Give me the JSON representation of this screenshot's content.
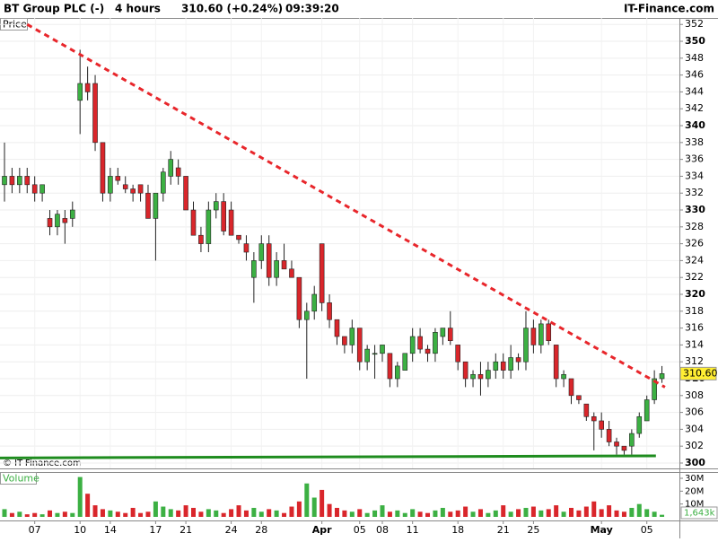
{
  "chart_data": {
    "type": "candlestick",
    "title": "BT Group PLC (-)",
    "interval": "4 hours",
    "change": "310.60 (+0.24%)",
    "time": "09:39:20",
    "source": "IT-Finance.com",
    "price_label": "Price",
    "copyright": "© IT-Finance.com",
    "up_color": "#3cb043",
    "down_color": "#d9262b",
    "categories": [
      null,
      null,
      null,
      null,
      "07",
      null,
      null,
      null,
      null,
      null,
      "10",
      null,
      null,
      null,
      "14",
      null,
      null,
      null,
      null,
      null,
      "17",
      null,
      null,
      null,
      "21",
      null,
      null,
      null,
      null,
      null,
      "24",
      null,
      null,
      null,
      "28",
      null,
      null,
      null,
      null,
      null,
      null,
      null,
      "Apr",
      null,
      null,
      null,
      null,
      "05",
      null,
      null,
      "08",
      null,
      null,
      null,
      "11",
      null,
      null,
      null,
      null,
      null,
      "18",
      null,
      null,
      null,
      null,
      null,
      "21",
      null,
      null,
      null,
      "25",
      null,
      null,
      null,
      null,
      null,
      null,
      null,
      null,
      "May",
      null,
      null,
      null,
      null,
      null,
      "05",
      null,
      null
    ],
    "open": [
      333,
      334,
      333,
      334,
      333,
      332,
      329,
      328,
      329,
      329,
      343,
      345,
      345,
      338,
      332,
      334,
      333,
      332.5,
      333,
      332,
      329,
      332,
      334,
      335,
      334,
      330,
      327,
      326,
      330,
      331,
      330,
      327,
      326,
      322,
      324,
      326,
      322,
      324,
      323,
      322,
      317,
      318,
      326,
      319,
      317,
      315,
      314,
      316,
      312,
      313,
      313,
      313,
      310,
      311,
      313,
      315,
      313.5,
      313,
      315,
      316,
      314,
      312,
      310,
      310.5,
      310,
      311,
      312,
      311,
      312.5,
      312,
      316,
      314,
      316.5,
      314,
      310,
      310,
      308,
      307,
      305.5,
      305,
      304,
      302.5,
      302,
      302,
      303.5,
      305,
      307.5,
      310
    ],
    "high": [
      338,
      335,
      335,
      335,
      334,
      333,
      330,
      330,
      330,
      331,
      349,
      347,
      346,
      338,
      335,
      335,
      334,
      333,
      333,
      333,
      332,
      335,
      337,
      336,
      334,
      331,
      328,
      331,
      332,
      332,
      331,
      327,
      327,
      325,
      327,
      327,
      325,
      326,
      324,
      322,
      319,
      321,
      326,
      320,
      317,
      315,
      317,
      316,
      314,
      314,
      314,
      313,
      312,
      313,
      316,
      316,
      314,
      316,
      316,
      318,
      314,
      312,
      311,
      312,
      312,
      313,
      313,
      314,
      313,
      318,
      317,
      317,
      317,
      314,
      311,
      310,
      308,
      307,
      306,
      306,
      305,
      303,
      302,
      304,
      306,
      308,
      311,
      311.5
    ],
    "low": [
      331,
      332,
      332,
      332,
      331,
      331,
      327,
      327,
      326,
      328,
      339,
      343,
      337,
      331,
      331,
      333,
      332,
      331,
      331,
      329,
      324,
      331,
      333,
      333,
      330,
      327,
      325,
      325,
      329,
      327,
      327,
      326,
      324,
      319,
      323,
      321,
      321,
      323,
      322,
      316,
      310,
      317,
      318,
      316,
      314,
      313,
      313,
      311,
      311,
      310,
      312,
      309,
      309,
      311,
      312,
      313,
      312,
      312,
      314,
      314,
      311,
      309,
      309,
      308,
      309,
      310,
      310,
      310,
      311,
      311,
      313,
      313,
      314,
      309,
      309,
      307,
      307,
      305,
      301.5,
      303,
      302,
      301,
      301,
      301,
      303,
      305,
      307,
      309.5
    ],
    "close": [
      334,
      333,
      334,
      333,
      332,
      333,
      328,
      329.5,
      328.5,
      330,
      345,
      344,
      338,
      332,
      334,
      333.5,
      332.5,
      332,
      332,
      329,
      332,
      334.5,
      336,
      334,
      330,
      327,
      326,
      330,
      331,
      327.5,
      327,
      326.5,
      325,
      324,
      326,
      322,
      324,
      323,
      322,
      317,
      318,
      320,
      319,
      317,
      315,
      314,
      316,
      312,
      313.5,
      313,
      314,
      310,
      311.5,
      313,
      315,
      313.5,
      313,
      315.5,
      316,
      314.5,
      312,
      310,
      310.5,
      310,
      311,
      312,
      311,
      312.5,
      312,
      316,
      314,
      316.5,
      314.5,
      310,
      310.5,
      308,
      307.5,
      305.5,
      305,
      304,
      302.5,
      302,
      301.5,
      303.5,
      305.5,
      307.5,
      310,
      310.6
    ],
    "ylim": [
      299.36,
      352.77
    ],
    "yticks": [
      300,
      302,
      304,
      306,
      308,
      310,
      312,
      314,
      316,
      318,
      320,
      322,
      324,
      326,
      328,
      330,
      332,
      334,
      336,
      338,
      340,
      342,
      344,
      346,
      348,
      350,
      352
    ],
    "last_price": {
      "value": 310.6,
      "label": "310.60"
    },
    "trendlines": [
      {
        "color": "#e8262b",
        "dashed": true,
        "x": [
          3,
          87.4
        ],
        "y": [
          352,
          309
        ]
      },
      {
        "color": "#1e8c1e",
        "dashed": false,
        "x": [
          -0.6,
          86.2
        ],
        "y": [
          300.6,
          300.85
        ]
      }
    ],
    "volume": {
      "label": "Volume",
      "values": [
        6,
        3,
        4,
        2,
        3,
        2,
        5,
        3,
        4,
        3,
        31,
        18,
        9,
        6,
        5,
        4,
        3,
        7,
        3,
        4,
        12,
        8,
        6,
        5,
        9,
        7,
        4,
        6,
        5,
        3,
        6,
        9,
        5,
        7,
        4,
        6,
        5,
        3,
        8,
        12,
        26,
        15,
        21,
        10,
        7,
        5,
        4,
        6,
        3,
        5,
        9,
        4,
        5,
        3,
        6,
        4,
        3,
        5,
        7,
        4,
        5,
        8,
        4,
        6,
        3,
        5,
        9,
        4,
        6,
        7,
        8,
        5,
        6,
        9,
        4,
        7,
        5,
        8,
        12,
        6,
        9,
        5,
        4,
        7,
        10,
        6,
        4,
        1.643
      ],
      "last_label": "1,643k",
      "ylim": [
        0,
        34.9
      ],
      "yticks": [
        {
          "value": 10,
          "label": "10M"
        },
        {
          "value": 20,
          "label": "20M"
        },
        {
          "value": 30,
          "label": "30M"
        }
      ]
    }
  }
}
